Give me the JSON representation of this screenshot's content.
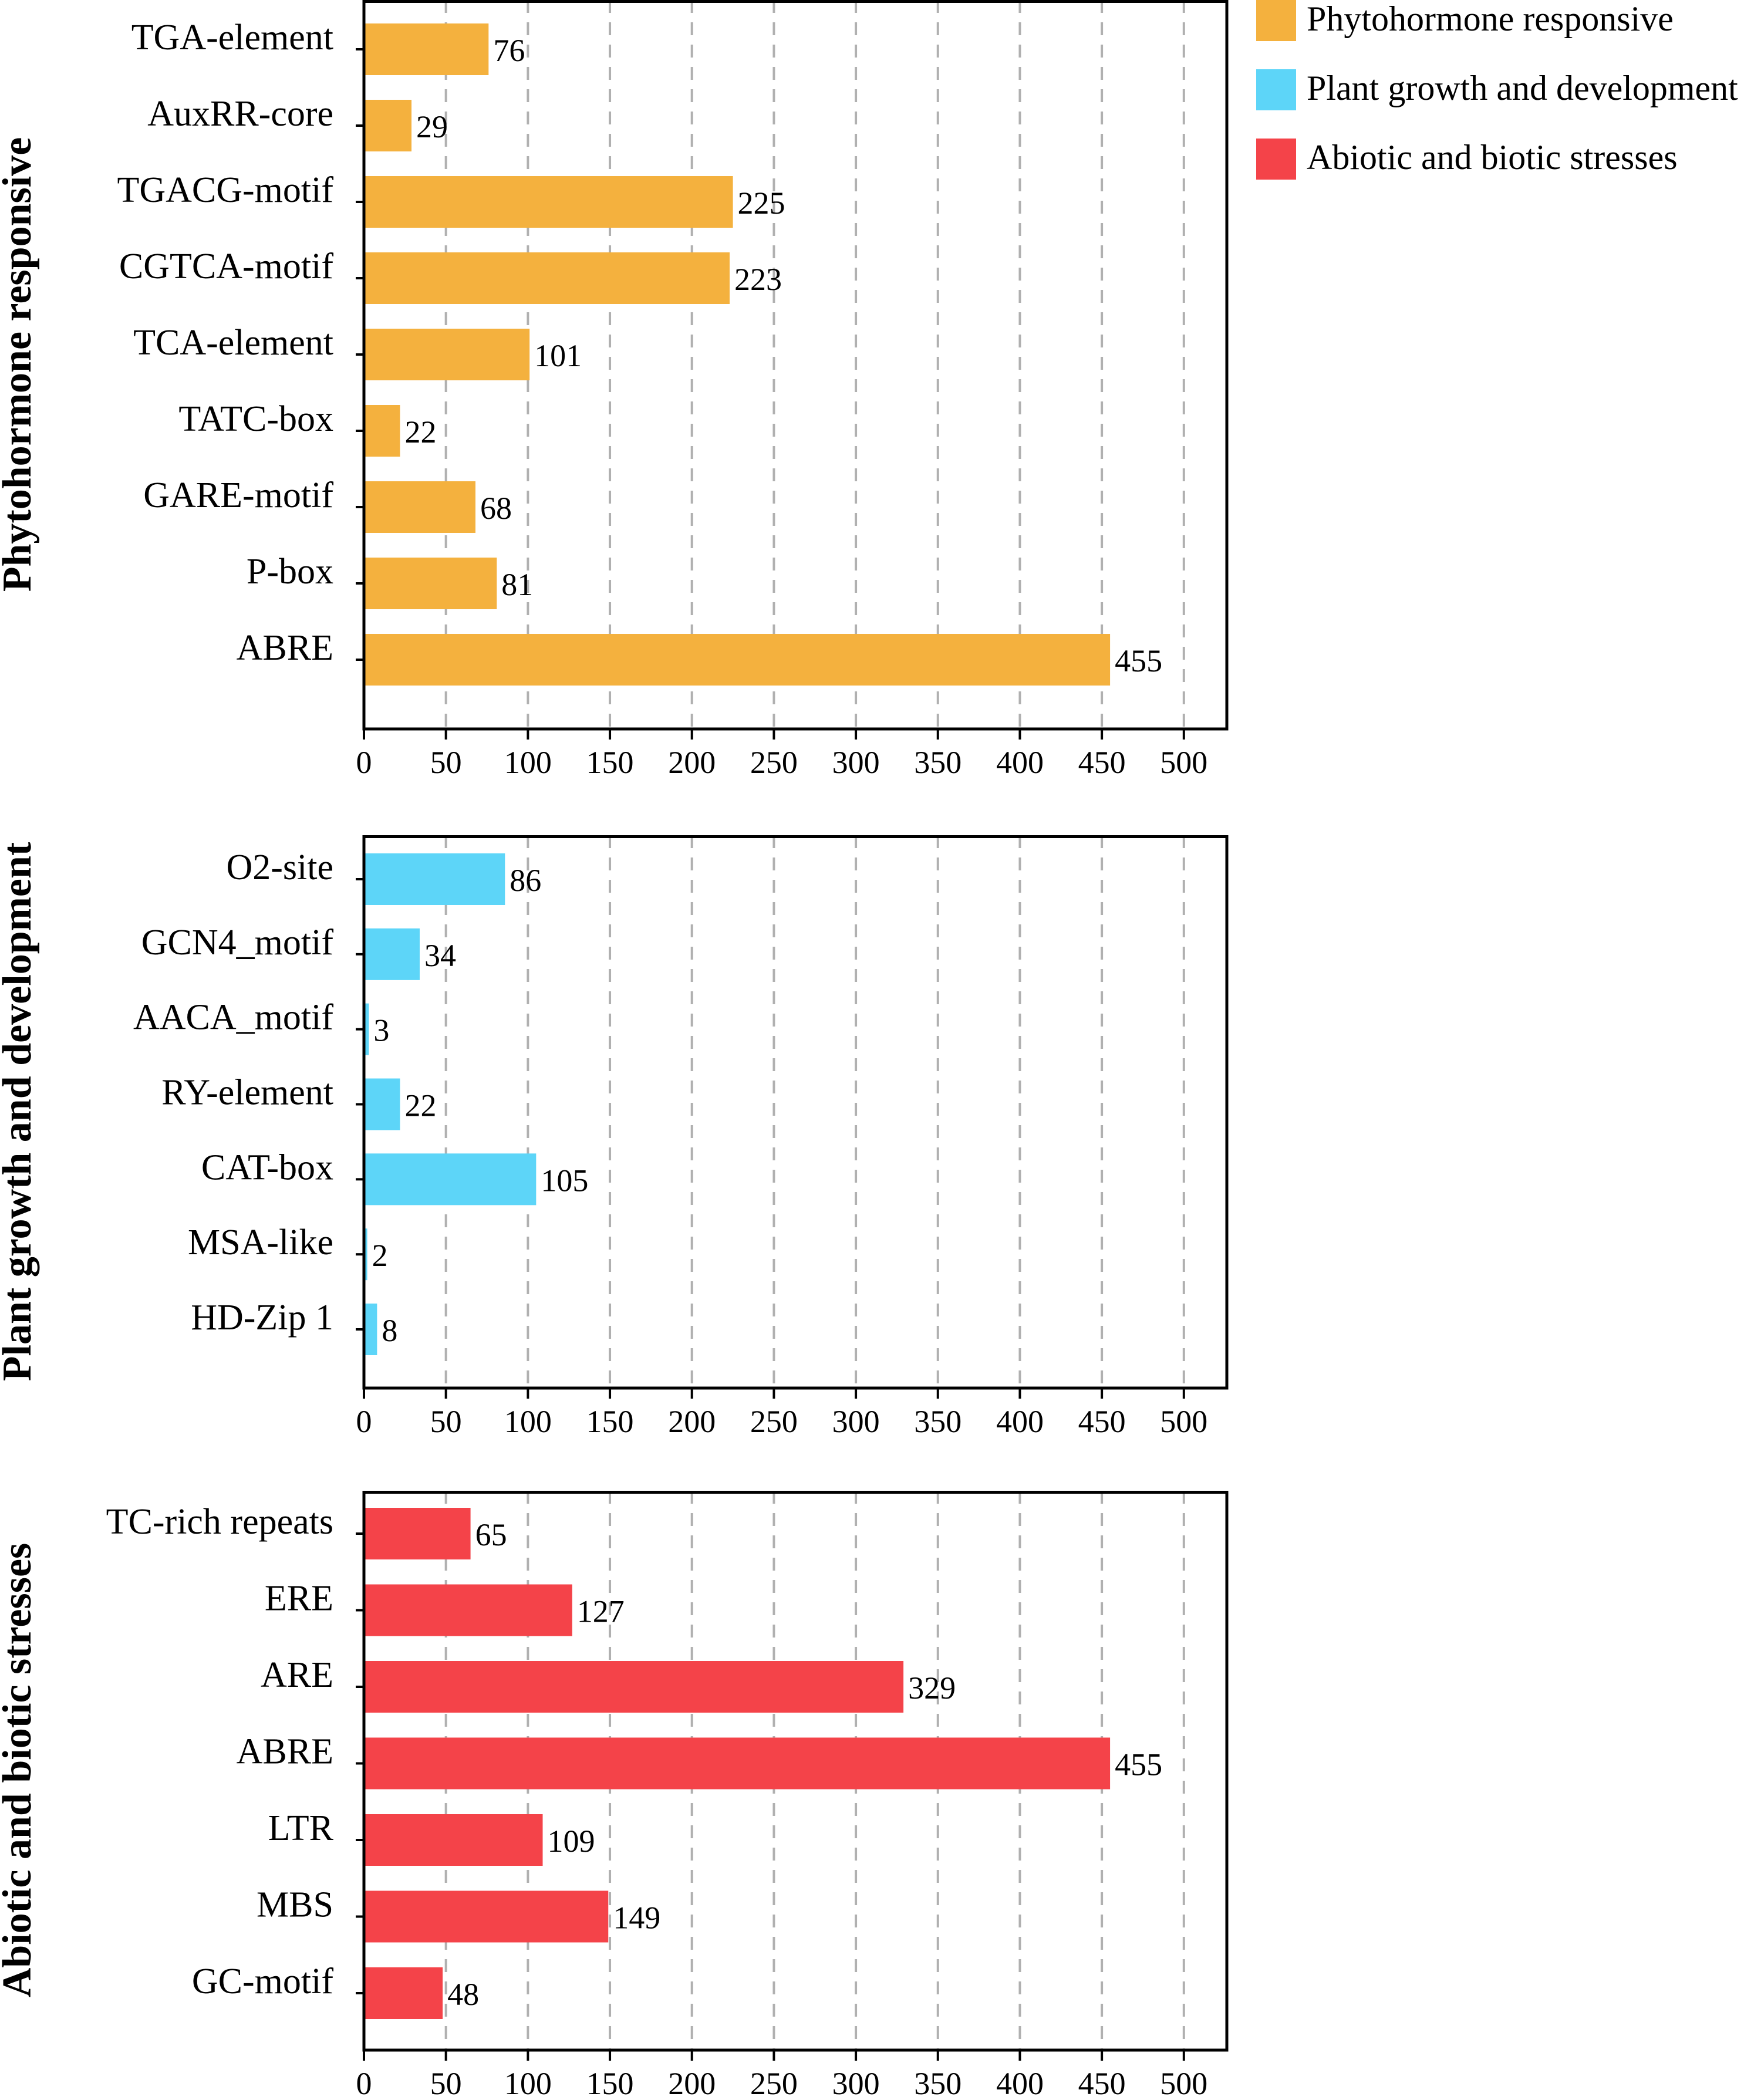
{
  "chart_data": [
    {
      "type": "bar",
      "orientation": "horizontal",
      "title": "Phytohormone responsive",
      "categories": [
        "TGA-element",
        "AuxRR-core",
        "TGACG-motif",
        "CGTCA-motif",
        "TCA-element",
        "TATC-box",
        "GARE-motif",
        "P-box",
        "ABRE"
      ],
      "values": [
        76,
        29,
        225,
        223,
        101,
        22,
        68,
        81,
        455
      ],
      "color": "#F4B13E",
      "xlim": [
        0,
        520
      ],
      "xticks": [
        "0",
        "50",
        "100",
        "150",
        "200",
        "250",
        "300",
        "350",
        "400",
        "450",
        "500"
      ],
      "grid": true
    },
    {
      "type": "bar",
      "orientation": "horizontal",
      "title": "Plant growth and development",
      "categories": [
        "O2-site",
        "GCN4_motif",
        "AACA_motif",
        "RY-element",
        "CAT-box",
        "MSA-like",
        "HD-Zip 1"
      ],
      "values": [
        86,
        34,
        3,
        22,
        105,
        2,
        8
      ],
      "color": "#5DD5F8",
      "xlim": [
        0,
        520
      ],
      "xticks": [
        "0",
        "50",
        "100",
        "150",
        "200",
        "250",
        "300",
        "350",
        "400",
        "450",
        "500"
      ],
      "grid": true
    },
    {
      "type": "bar",
      "orientation": "horizontal",
      "title": "Abiotic and biotic stresses",
      "categories": [
        "TC-rich repeats",
        "ERE",
        "ARE",
        "ABRE",
        "LTR",
        "MBS",
        "GC-motif"
      ],
      "values": [
        65,
        127,
        329,
        455,
        109,
        149,
        48
      ],
      "color": "#F44349",
      "xlim": [
        0,
        520
      ],
      "xticks": [
        "0",
        "50",
        "100",
        "150",
        "200",
        "250",
        "300",
        "350",
        "400",
        "450",
        "500"
      ],
      "grid": true
    }
  ],
  "legend": {
    "position": "top-right",
    "items": [
      {
        "label": "Phytohormone responsive",
        "color": "#F4B13E"
      },
      {
        "label": "Plant growth and development",
        "color": "#5DD5F8"
      },
      {
        "label": "Abiotic and biotic stresses",
        "color": "#F44349"
      }
    ]
  }
}
